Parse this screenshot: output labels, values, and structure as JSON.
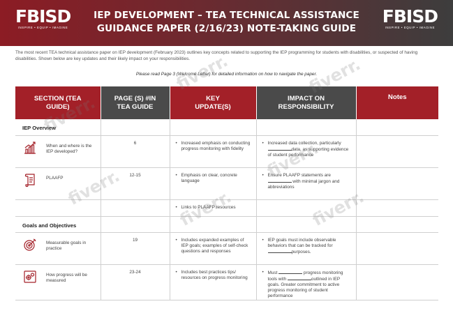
{
  "header": {
    "logo_text": "FBISD",
    "logo_tagline": "INSPIRE • EQUIP • IMAGINE",
    "title_line1": "IEP DEVELOPMENT – TEA TECHNICAL ASSISTANCE",
    "title_line2": "GUIDANCE PAPER (2/16/23) NOTE-TAKING GUIDE"
  },
  "intro": "The most recent TEA technical assistance paper on IEP development (February 2023) outlines key concepts related to supporting the IEP programming for students with disabilities, or suspected of having disabilities. Shown below are key updates and their likely impact on your responsibilities.",
  "note": "Please read Page 3 (Welcome Letter) for detailed information on how to navigate the paper.",
  "table": {
    "headers": {
      "section": "SECTION (TEA GUIDE)",
      "page": "PAGE (S) #IN TEA GUIDE",
      "key": "KEY UPDATE(S)",
      "impact": "IMPACT ON RESPONSIBILITY",
      "notes": "Notes"
    },
    "iep_overview": {
      "label": "IEP Overview",
      "when": {
        "icon": "growth-chart-icon",
        "label": "When and where is the IEP developed?",
        "page": "6",
        "update": "Increased emphasis on conducting progress monitoring with fidelity",
        "impact_a": "Increased data collection, particularly",
        "impact_b": "data, as supporting evidence of student performance"
      },
      "plaafp": {
        "icon": "scroll-icon",
        "label": "PLAAFP",
        "page": "12-15",
        "update": "Emphasis on clear, concrete language",
        "impact_a": "Ensure PLAAFP statements are",
        "impact_b": "with minimal jargon and abbreviations"
      },
      "links": {
        "update": "Links to PLAAFP resources"
      }
    },
    "goals": {
      "label": "Goals and Objectives",
      "measurable": {
        "icon": "target-icon",
        "label": "Measurable goals in practice",
        "page": "19",
        "update": "Includes expanded examples of IEP goals; examples of self-check questions and responses",
        "impact_a": "IEP goals must include observable behaviors that can be tracked for",
        "impact_b": "purposes."
      },
      "progress": {
        "icon": "gears-icon",
        "label": "How progress will be measured",
        "page": "23-24",
        "update": "Includes best practices tips/ resources on progress monitoring",
        "impact_a": "Must",
        "impact_b": "progress monitoring tools with",
        "impact_c": "outlined in IEP goals. Greater commitment to active progress monitoring of student performance"
      }
    }
  },
  "watermark": "fiverr."
}
